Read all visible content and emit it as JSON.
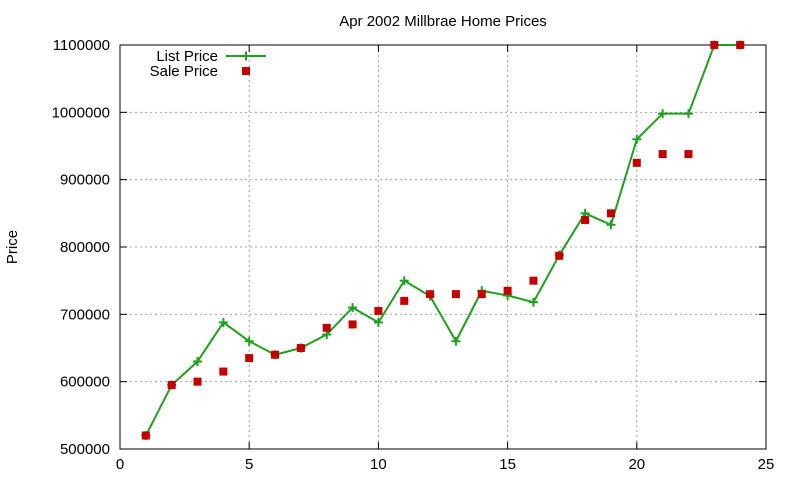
{
  "chart_data": {
    "type": "line",
    "title": "Apr 2002 Millbrae Home Prices",
    "xlabel": "",
    "ylabel": "Price",
    "xlim": [
      0,
      25
    ],
    "ylim": [
      500000,
      1100000
    ],
    "xticks": [
      0,
      5,
      10,
      15,
      20,
      25
    ],
    "yticks": [
      500000,
      600000,
      700000,
      800000,
      900000,
      1000000,
      1100000
    ],
    "grid": true,
    "legend_position": "top-left",
    "series": [
      {
        "name": "List Price",
        "style": "line-plus",
        "color": "#1fa01f",
        "x": [
          1,
          2,
          3,
          4,
          5,
          6,
          7,
          8,
          9,
          10,
          11,
          12,
          13,
          14,
          15,
          16,
          17,
          18,
          19,
          20,
          21,
          22,
          23,
          24
        ],
        "values": [
          520000,
          595000,
          630000,
          688000,
          660000,
          640000,
          650000,
          670000,
          710000,
          688000,
          750000,
          727000,
          660000,
          735000,
          728000,
          718000,
          788000,
          850000,
          833000,
          960000,
          998000,
          998000,
          1100000,
          1100000
        ]
      },
      {
        "name": "Sale Price",
        "style": "square-markers",
        "color": "#c40000",
        "x": [
          1,
          2,
          3,
          4,
          5,
          6,
          7,
          8,
          9,
          10,
          11,
          12,
          13,
          14,
          15,
          16,
          17,
          18,
          19,
          20,
          21,
          22,
          23,
          24
        ],
        "values": [
          520000,
          595000,
          600000,
          615000,
          635000,
          640000,
          650000,
          680000,
          685000,
          705000,
          720000,
          730000,
          730000,
          730000,
          735000,
          750000,
          787000,
          840000,
          850000,
          925000,
          938000,
          938000,
          1100000,
          1100000
        ]
      }
    ]
  }
}
